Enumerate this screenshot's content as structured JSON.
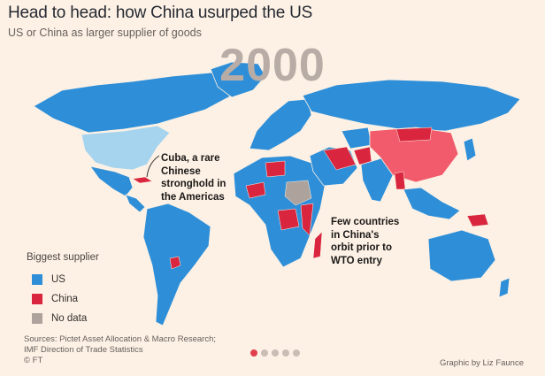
{
  "header": {
    "title": "Head to head: how China usurped the US",
    "subtitle": "US or China as larger supplier of goods",
    "year": "2000"
  },
  "colors": {
    "us": "#2e8fd8",
    "china": "#d9263e",
    "no_data": "#aea39c",
    "usa": "#a6d4ee",
    "background": "#fdf1e5"
  },
  "annotations": {
    "cuba": [
      "Cuba, a rare",
      "Chinese",
      "stronghold in",
      "the Americas"
    ],
    "china_orbit": [
      "Few countries",
      "in China's",
      "orbit prior to",
      "WTO entry"
    ]
  },
  "legend": {
    "title": "Biggest supplier",
    "items": [
      {
        "label": "US",
        "color": "#2e8fd8"
      },
      {
        "label": "China",
        "color": "#d9263e"
      },
      {
        "label": "No data",
        "color": "#aea39c"
      }
    ]
  },
  "footer": {
    "sources_line1": "Sources: Pictet Asset Allocation & Macro Research;",
    "sources_line2": "IMF Direction of Trade Statistics",
    "copyright": "© FT",
    "credit": "Graphic by Liz Faunce"
  },
  "pagination": {
    "count": 5,
    "active_index": 0
  }
}
